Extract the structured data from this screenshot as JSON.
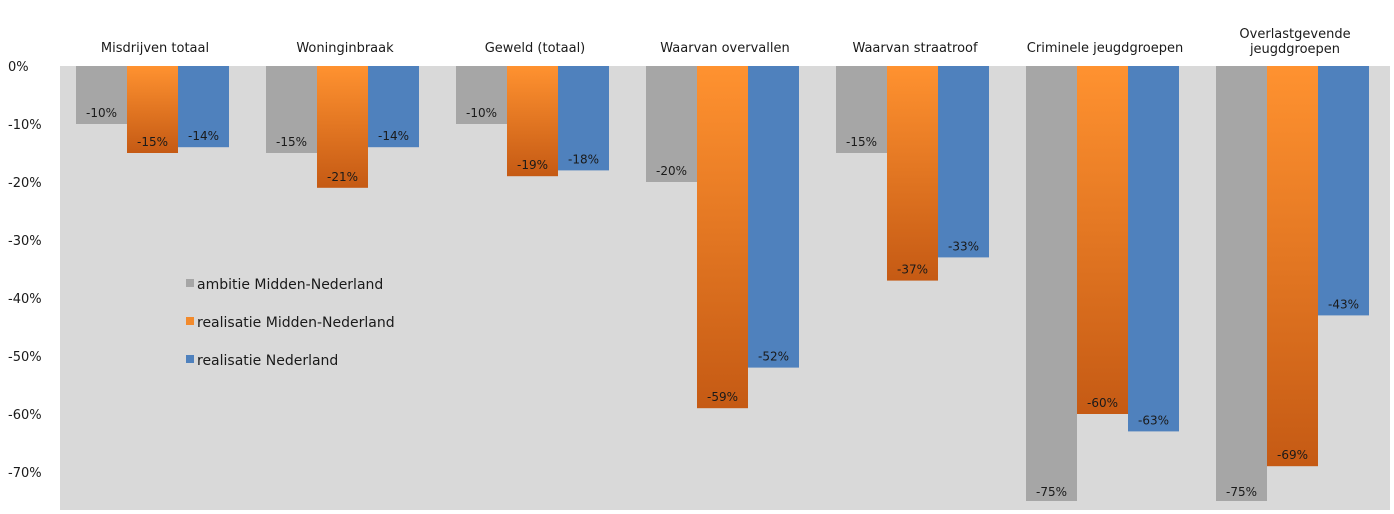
{
  "chart_data": {
    "type": "bar",
    "title": "",
    "xlabel": "",
    "ylabel": "",
    "categories": [
      [
        "Misdrijven totaal"
      ],
      [
        "Woninginbraak"
      ],
      [
        "Geweld (totaal)"
      ],
      [
        "Waarvan overvallen"
      ],
      [
        "Waarvan  straatroof"
      ],
      [
        "Criminele jeugdgroepen"
      ],
      [
        "Overlastgevende",
        "jeugdgroepen"
      ]
    ],
    "series": [
      {
        "name": "ambitie Midden-Nederland",
        "color": "#a6a6a6",
        "values": [
          -10,
          -15,
          -10,
          -20,
          -15,
          -75,
          -75
        ],
        "labels": [
          "-10%",
          "-15%",
          "-10%",
          "-20%",
          "-15%",
          "-75%",
          "-75%"
        ]
      },
      {
        "name": "realisatie Midden-Nederland",
        "color": "#f28a2c",
        "values": [
          -15,
          -21,
          -19,
          -59,
          -37,
          -60,
          -69
        ],
        "labels": [
          "-15%",
          "-21%",
          "-19%",
          "-59%",
          "-37%",
          "-60%",
          "-69%"
        ]
      },
      {
        "name": "realisatie Nederland",
        "color": "#4f81bd",
        "values": [
          -14,
          -14,
          -18,
          -52,
          -33,
          -63,
          -43
        ],
        "labels": [
          "-14%",
          "-14%",
          "-18%",
          "-52%",
          "-33%",
          "-63%",
          "-43%"
        ]
      }
    ],
    "yticks": [
      0,
      -10,
      -20,
      -30,
      -40,
      -50,
      -60,
      -70
    ],
    "ytick_labels": [
      "0%",
      "-10%",
      "-20%",
      "-30%",
      "-40%",
      "-50%",
      "-60%",
      "-70%"
    ],
    "ylim": [
      -75,
      0
    ],
    "grid": false,
    "legend": "inside-left",
    "plot_background": "#d9d9d9"
  }
}
